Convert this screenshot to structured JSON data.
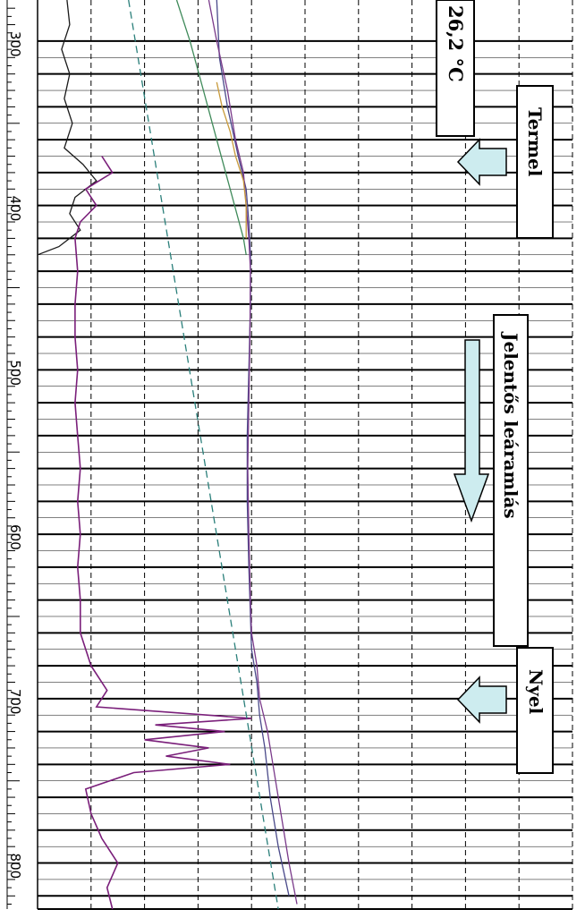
{
  "chart_data": {
    "type": "line",
    "title": "",
    "xlabel": "",
    "ylabel": "",
    "depth_ticks": [
      "300",
      "400",
      "500",
      "600",
      "700",
      "800"
    ],
    "depth_range": [
      275,
      828
    ],
    "series": [
      {
        "color": "#1a1a1a",
        "depth": [
          275,
          290,
          305,
          320,
          335,
          350,
          365,
          375,
          385,
          395,
          405,
          415,
          425,
          430
        ],
        "value": [
          0.55,
          0.6,
          0.45,
          0.6,
          0.5,
          0.65,
          0.5,
          0.85,
          1.1,
          0.7,
          0.6,
          0.8,
          0.4,
          0.0
        ]
      },
      {
        "color": "#7a1f7a",
        "depth": [
          370,
          380,
          390,
          400,
          410,
          420,
          440,
          460,
          480,
          500,
          520,
          540,
          560,
          580,
          600,
          620,
          640,
          660,
          680,
          695,
          705,
          712,
          716,
          720,
          725,
          730,
          735,
          740,
          745,
          755,
          770,
          785,
          800,
          815,
          828
        ],
        "value": [
          1.2,
          1.4,
          0.9,
          1.1,
          0.8,
          0.7,
          0.75,
          0.7,
          0.7,
          0.75,
          0.7,
          0.75,
          0.8,
          0.75,
          0.8,
          0.75,
          0.8,
          0.8,
          1.0,
          1.3,
          1.1,
          4.0,
          2.2,
          3.5,
          2.0,
          3.2,
          2.4,
          3.6,
          1.8,
          0.9,
          1.0,
          1.2,
          1.5,
          1.3,
          1.4
        ]
      },
      {
        "color": "#4a4a8a",
        "depth": [
          275,
          310,
          340,
          370,
          390,
          410,
          430,
          460,
          500,
          540,
          580,
          620,
          650,
          670,
          690,
          710,
          730,
          760,
          790,
          820
        ],
        "value": [
          3.35,
          3.4,
          3.55,
          3.75,
          3.9,
          3.95,
          3.98,
          3.98,
          3.95,
          3.92,
          3.92,
          3.95,
          3.98,
          4.0,
          4.1,
          4.15,
          4.25,
          4.35,
          4.5,
          4.7
        ]
      },
      {
        "color": "#7a3a8a",
        "depth": [
          275,
          300,
          330,
          360,
          380,
          400,
          420,
          440,
          480,
          520,
          560,
          600,
          640,
          660,
          680,
          700,
          720,
          740,
          770,
          800,
          825
        ],
        "value": [
          3.2,
          3.35,
          3.55,
          3.7,
          3.85,
          3.9,
          3.95,
          3.98,
          3.97,
          3.95,
          3.93,
          3.95,
          3.98,
          4.0,
          4.1,
          4.15,
          4.3,
          4.4,
          4.55,
          4.7,
          4.85
        ]
      },
      {
        "color": "#c89a3a",
        "depth": [
          325,
          340,
          355,
          370,
          385,
          400,
          420
        ],
        "value": [
          3.35,
          3.45,
          3.6,
          3.7,
          3.85,
          3.9,
          3.9
        ]
      },
      {
        "color": "#3f8a5a",
        "depth": [
          275,
          300,
          330,
          360,
          390,
          420,
          430
        ],
        "value": [
          2.6,
          2.85,
          3.1,
          3.35,
          3.6,
          3.85,
          3.9
        ]
      },
      {
        "color": "#2a7f7a",
        "dashed": true,
        "depth": [
          275,
          828
        ],
        "value": [
          1.7,
          4.5
        ]
      }
    ]
  },
  "annotations": {
    "temperature": "26,2 °C",
    "callout_top": "Termel",
    "callout_mid": "Jelentős leáramlás",
    "callout_bottom": "Nyel"
  }
}
